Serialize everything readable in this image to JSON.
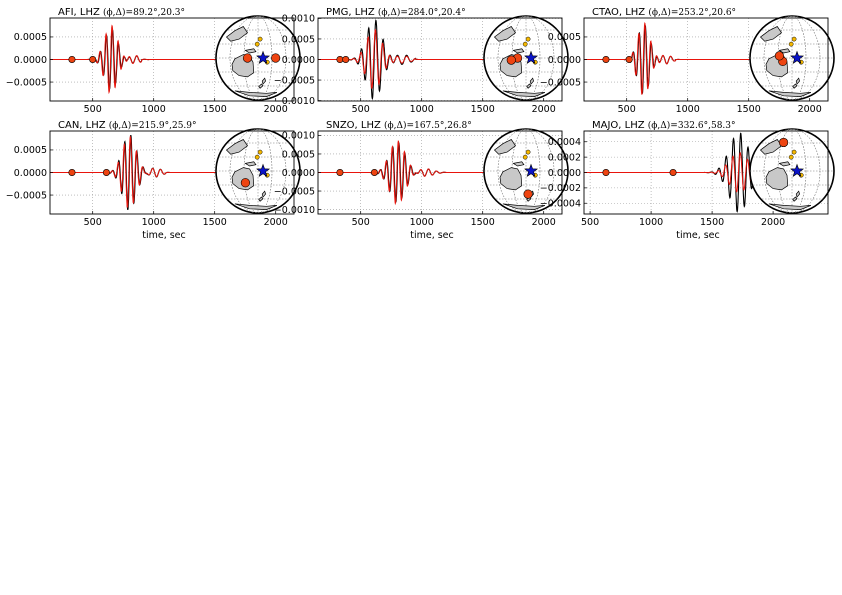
{
  "chart_data": [
    {
      "type": "line",
      "title": "AFI, LHZ",
      "title_math": "(ϕ,Δ)=89.2°,20.3°",
      "xlabel": "",
      "xlim": [
        150,
        2150
      ],
      "ylim": [
        -0.00092,
        0.00092
      ],
      "xticks": [
        500,
        1000,
        1500,
        2000
      ],
      "xtick_labels": [
        "500",
        "1000",
        "1500",
        "2000"
      ],
      "yticks": [
        0.0005,
        0,
        -0.0005
      ],
      "ytick_labels": [
        "0.0005",
        "0.0000",
        "−0.0005"
      ],
      "wave": {
        "center": 650,
        "start": 450,
        "end": 900,
        "amp": 0.00068,
        "period": 50,
        "width": 75,
        "ratio": 1.12
      },
      "grid": true,
      "series": [],
      "inset": {
        "stations": [
          {
            "x": -0.25,
            "y": 0
          },
          {
            "x": 0.42,
            "y": 0
          }
        ],
        "quake": {
          "x": 0.12,
          "y": 0
        }
      }
    },
    {
      "type": "line",
      "title": "PMG, LHZ",
      "title_math": "(ϕ,Δ)=284.0°,20.4°",
      "xlabel": "",
      "xlim": [
        150,
        2150
      ],
      "ylim": [
        -0.00101,
        0.00101
      ],
      "xticks": [
        500,
        1000,
        1500,
        2000
      ],
      "xtick_labels": [
        "500",
        "1000",
        "1500",
        "2000"
      ],
      "yticks": [
        0.001,
        0.0005,
        0,
        -0.0005,
        -0.001
      ],
      "ytick_labels": [
        "0.0010",
        "0.0005",
        "0.0000",
        "−0.0005",
        "−0.0010"
      ],
      "wave": {
        "center": 610,
        "start": 300,
        "end": 950,
        "amp": 0.00098,
        "period": 60,
        "width": 90,
        "ratio": 0.75
      },
      "grid": true,
      "series": [],
      "inset": {
        "stations": [
          {
            "x": -0.2,
            "y": 0.0
          },
          {
            "x": -0.35,
            "y": -0.05
          }
        ],
        "quake": {
          "x": 0.12,
          "y": 0
        }
      }
    },
    {
      "type": "line",
      "title": "CTAO, LHZ",
      "title_math": "(ϕ,Δ)=253.2°,20.6°",
      "xlabel": "",
      "xlim": [
        150,
        2150
      ],
      "ylim": [
        -0.00092,
        0.00092
      ],
      "xticks": [
        500,
        1000,
        1500,
        2000
      ],
      "xtick_labels": [
        "500",
        "1000",
        "1500",
        "2000"
      ],
      "yticks": [
        0.0005,
        0,
        -0.0005
      ],
      "ytick_labels": [
        "0.0005",
        "0.0000",
        "−0.0005"
      ],
      "wave": {
        "center": 640,
        "start": 480,
        "end": 900,
        "amp": 0.00078,
        "period": 50,
        "width": 70,
        "ratio": 1.05
      },
      "grid": true,
      "series": [],
      "inset": {
        "stations": [
          {
            "x": -0.22,
            "y": -0.08
          },
          {
            "x": -0.3,
            "y": 0.05
          }
        ],
        "quake": {
          "x": 0.12,
          "y": 0
        }
      }
    },
    {
      "type": "line",
      "title": "CAN, LHZ",
      "title_math": "(ϕ,Δ)=215.9°,25.9°",
      "xlabel": "time, sec",
      "xlim": [
        150,
        2150
      ],
      "ylim": [
        -0.00092,
        0.00092
      ],
      "xticks": [
        500,
        1000,
        1500,
        2000
      ],
      "xtick_labels": [
        "500",
        "1000",
        "1500",
        "2000"
      ],
      "yticks": [
        0.0005,
        0,
        -0.0005
      ],
      "ytick_labels": [
        "0.0005",
        "0.0000",
        "−0.0005"
      ],
      "wave": {
        "center": 800,
        "start": 550,
        "end": 1100,
        "amp": 0.00085,
        "period": 50,
        "width": 80,
        "ratio": 0.95
      },
      "grid": true,
      "series": [],
      "inset": {
        "stations": [
          {
            "x": -0.3,
            "y": -0.28
          }
        ],
        "quake": {
          "x": 0.12,
          "y": 0
        }
      }
    },
    {
      "type": "line",
      "title": "SNZO, LHZ",
      "title_math": "(ϕ,Δ)=167.5°,26.8°",
      "xlabel": "time, sec",
      "xlim": [
        150,
        2150
      ],
      "ylim": [
        -0.00112,
        0.00112
      ],
      "xticks": [
        500,
        1000,
        1500,
        2000
      ],
      "xtick_labels": [
        "500",
        "1000",
        "1500",
        "2000"
      ],
      "yticks": [
        0.001,
        0.0005,
        0,
        -0.0005,
        -0.001
      ],
      "ytick_labels": [
        "0.0010",
        "0.0005",
        "0.0000",
        "−0.0005",
        "−0.0010"
      ],
      "wave": {
        "center": 800,
        "start": 550,
        "end": 1200,
        "amp": 0.00082,
        "period": 50,
        "width": 90,
        "ratio": 1.05
      },
      "grid": true,
      "series": [],
      "inset": {
        "stations": [
          {
            "x": 0.05,
            "y": -0.55
          }
        ],
        "quake": {
          "x": 0.12,
          "y": 0
        }
      }
    },
    {
      "type": "line",
      "title": "MAJO, LHZ",
      "title_math": "(ϕ,Δ)=332.6°,58.3°",
      "xlabel": "time, sec",
      "xlim": [
        450,
        2450
      ],
      "ylim": [
        -0.00054,
        0.00054
      ],
      "xticks": [
        500,
        1000,
        1500,
        2000
      ],
      "xtick_labels": [
        "500",
        "1000",
        "1500",
        "2000"
      ],
      "yticks": [
        0.0004,
        0.0002,
        0,
        -0.0002,
        -0.0004
      ],
      "ytick_labels": [
        "0.0004",
        "0.0002",
        "0.0000",
        "−0.0002",
        "−0.0004"
      ],
      "wave": {
        "center": 1720,
        "start": 1000,
        "end": 2000,
        "amp": 0.00052,
        "period": 60,
        "width": 110,
        "ratio": 0.5
      },
      "grid": true,
      "series": [],
      "inset": {
        "stations": [
          {
            "x": -0.2,
            "y": 0.68
          }
        ],
        "quake": {
          "x": 0.12,
          "y": 0
        }
      }
    }
  ],
  "colors": {
    "observed": "#000000",
    "synthetic": "#e8140c",
    "station": "#ee4411",
    "quake": "#0a13c8",
    "grid": "#999999"
  }
}
